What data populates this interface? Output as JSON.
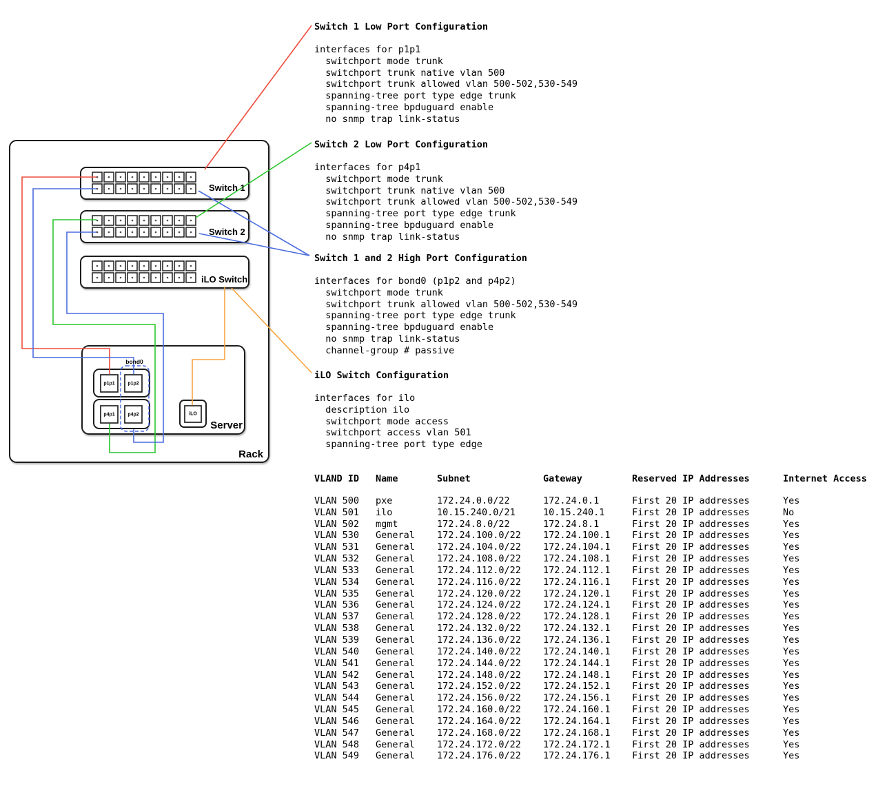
{
  "diagram": {
    "rack_label": "Rack",
    "server_label": "Server",
    "bond_label": "bond0",
    "ilo_label": "iLO",
    "switches": [
      {
        "label": "Switch 1"
      },
      {
        "label": "Switch 2"
      },
      {
        "label": "iLO Switch"
      }
    ],
    "ports_per_row": 9,
    "port_rows": 2,
    "nics": [
      {
        "label": "p1p1"
      },
      {
        "label": "p1p2"
      },
      {
        "label": "p4p1"
      },
      {
        "label": "p4p2"
      }
    ],
    "wire_colors": {
      "red": "#ef4d3c",
      "green": "#2dc62d",
      "blue": "#4b6cdf",
      "orange": "#f6a540"
    }
  },
  "config_blocks": [
    {
      "title": "Switch 1 Low Port Configuration",
      "lines": [
        "interfaces for p1p1",
        "  switchport mode trunk",
        "  switchport trunk native vlan 500",
        "  switchport trunk allowed vlan 500-502,530-549",
        "  spanning-tree port type edge trunk",
        "  spanning-tree bpduguard enable",
        "  no snmp trap link-status"
      ]
    },
    {
      "title": "Switch 2 Low Port Configuration",
      "lines": [
        "interfaces for p4p1",
        "  switchport mode trunk",
        "  switchport trunk native vlan 500",
        "  switchport trunk allowed vlan 500-502,530-549",
        "  spanning-tree port type edge trunk",
        "  spanning-tree bpduguard enable",
        "  no snmp trap link-status"
      ]
    },
    {
      "title": "Switch 1 and 2 High Port Configuration",
      "lines": [
        "interfaces for bond0 (p1p2 and p4p2)",
        "  switchport mode trunk",
        "  switchport trunk allowed vlan 500-502,530-549",
        "  spanning-tree port type edge trunk",
        "  spanning-tree bpduguard enable",
        "  no snmp trap link-status",
        "  channel-group # passive"
      ]
    },
    {
      "title": "iLO Switch Configuration",
      "lines": [
        "interfaces for ilo",
        "  description ilo",
        "  switchport mode access",
        "  switchport access vlan 501",
        "  spanning-tree port type edge"
      ]
    }
  ],
  "table": {
    "headers": [
      "VLAND ID",
      "Name",
      "Subnet",
      "Gateway",
      "Reserved IP Addresses",
      "Internet Access"
    ],
    "rows": [
      [
        "VLAN 500",
        "pxe",
        "172.24.0.0/22",
        "172.24.0.1",
        "First 20 IP addresses",
        "Yes"
      ],
      [
        "VLAN 501",
        "ilo",
        "10.15.240.0/21",
        "10.15.240.1",
        "First 20 IP addresses",
        "No"
      ],
      [
        "VLAN 502",
        "mgmt",
        "172.24.8.0/22",
        "172.24.8.1",
        "First 20 IP addresses",
        "Yes"
      ],
      [
        "VLAN 530",
        "General",
        "172.24.100.0/22",
        "172.24.100.1",
        "First 20 IP addresses",
        "Yes"
      ],
      [
        "VLAN 531",
        "General",
        "172.24.104.0/22",
        "172.24.104.1",
        "First 20 IP addresses",
        "Yes"
      ],
      [
        "VLAN 532",
        "General",
        "172.24.108.0/22",
        "172.24.108.1",
        "First 20 IP addresses",
        "Yes"
      ],
      [
        "VLAN 533",
        "General",
        "172.24.112.0/22",
        "172.24.112.1",
        "First 20 IP addresses",
        "Yes"
      ],
      [
        "VLAN 534",
        "General",
        "172.24.116.0/22",
        "172.24.116.1",
        "First 20 IP addresses",
        "Yes"
      ],
      [
        "VLAN 535",
        "General",
        "172.24.120.0/22",
        "172.24.120.1",
        "First 20 IP addresses",
        "Yes"
      ],
      [
        "VLAN 536",
        "General",
        "172.24.124.0/22",
        "172.24.124.1",
        "First 20 IP addresses",
        "Yes"
      ],
      [
        "VLAN 537",
        "General",
        "172.24.128.0/22",
        "172.24.128.1",
        "First 20 IP addresses",
        "Yes"
      ],
      [
        "VLAN 538",
        "General",
        "172.24.132.0/22",
        "172.24.132.1",
        "First 20 IP addresses",
        "Yes"
      ],
      [
        "VLAN 539",
        "General",
        "172.24.136.0/22",
        "172.24.136.1",
        "First 20 IP addresses",
        "Yes"
      ],
      [
        "VLAN 540",
        "General",
        "172.24.140.0/22",
        "172.24.140.1",
        "First 20 IP addresses",
        "Yes"
      ],
      [
        "VLAN 541",
        "General",
        "172.24.144.0/22",
        "172.24.144.1",
        "First 20 IP addresses",
        "Yes"
      ],
      [
        "VLAN 542",
        "General",
        "172.24.148.0/22",
        "172.24.148.1",
        "First 20 IP addresses",
        "Yes"
      ],
      [
        "VLAN 543",
        "General",
        "172.24.152.0/22",
        "172.24.152.1",
        "First 20 IP addresses",
        "Yes"
      ],
      [
        "VLAN 544",
        "General",
        "172.24.156.0/22",
        "172.24.156.1",
        "First 20 IP addresses",
        "Yes"
      ],
      [
        "VLAN 545",
        "General",
        "172.24.160.0/22",
        "172.24.160.1",
        "First 20 IP addresses",
        "Yes"
      ],
      [
        "VLAN 546",
        "General",
        "172.24.164.0/22",
        "172.24.164.1",
        "First 20 IP addresses",
        "Yes"
      ],
      [
        "VLAN 547",
        "General",
        "172.24.168.0/22",
        "172.24.168.1",
        "First 20 IP addresses",
        "Yes"
      ],
      [
        "VLAN 548",
        "General",
        "172.24.172.0/22",
        "172.24.172.1",
        "First 20 IP addresses",
        "Yes"
      ],
      [
        "VLAN 549",
        "General",
        "172.24.176.0/22",
        "172.24.176.1",
        "First 20 IP addresses",
        "Yes"
      ]
    ]
  }
}
